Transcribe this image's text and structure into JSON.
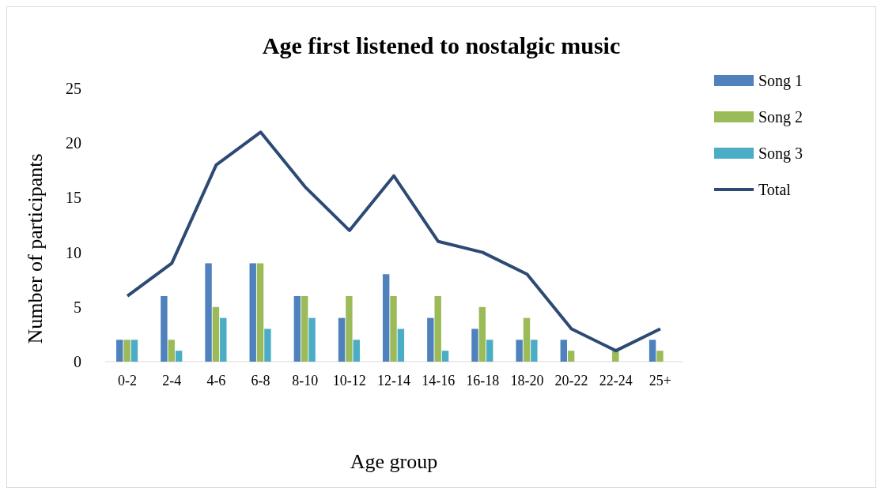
{
  "chart_data": {
    "type": "bar",
    "title": "Age first listened to nostalgic music",
    "xlabel": "Age group",
    "ylabel": "Number of participants",
    "categories": [
      "0-2",
      "2-4",
      "4-6",
      "6-8",
      "8-10",
      "10-12",
      "12-14",
      "14-16",
      "16-18",
      "18-20",
      "20-22",
      "22-24",
      "25+"
    ],
    "series": [
      {
        "name": "Song 1",
        "color": "#4f81bd",
        "values": [
          2,
          6,
          9,
          9,
          6,
          4,
          8,
          4,
          3,
          2,
          2,
          0,
          2
        ]
      },
      {
        "name": "Song 2",
        "color": "#9bbb59",
        "values": [
          2,
          2,
          5,
          9,
          6,
          6,
          6,
          6,
          5,
          4,
          1,
          1,
          1
        ]
      },
      {
        "name": "Song 3",
        "color": "#4bacc6",
        "values": [
          2,
          1,
          4,
          3,
          4,
          2,
          3,
          1,
          2,
          2,
          0,
          0,
          0
        ]
      },
      {
        "name": "Total",
        "type": "line",
        "color": "#2c4a74",
        "values": [
          6,
          9,
          18,
          21,
          16,
          12,
          17,
          11,
          10,
          8,
          3,
          1,
          3
        ]
      }
    ],
    "ylim": [
      0,
      25
    ],
    "yticks": [
      0,
      5,
      10,
      15,
      20,
      25
    ],
    "grid": false,
    "legend": "top right"
  }
}
